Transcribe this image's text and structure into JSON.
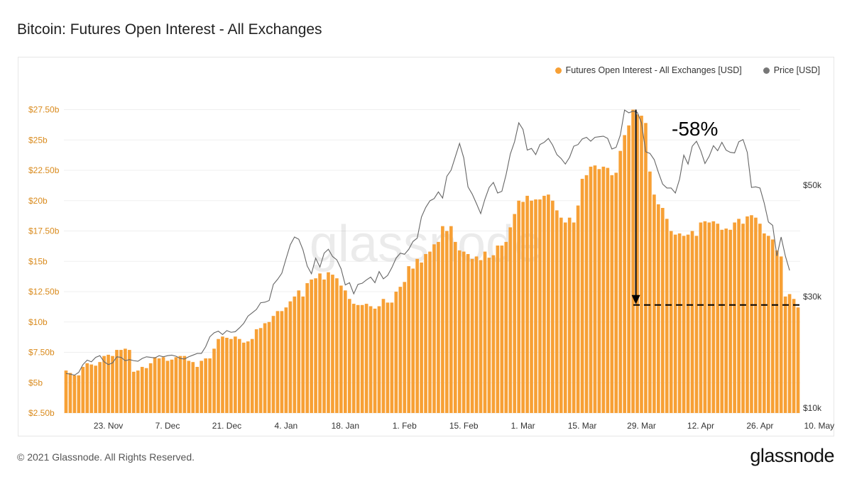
{
  "header": {
    "title": "Bitcoin: Futures Open Interest - All Exchanges"
  },
  "footer": {
    "copyright": "© 2021 Glassnode. All Rights Reserved.",
    "logo": "glassnode"
  },
  "watermark": "glassnode",
  "legend": [
    {
      "label": "Futures Open Interest - All Exchanges [USD]",
      "color": "#f7a035"
    },
    {
      "label": "Price [USD]",
      "color": "#777777"
    }
  ],
  "annotation": {
    "text": "-58%"
  },
  "chart_data": {
    "type": "bar",
    "title": "Bitcoin: Futures Open Interest - All Exchanges",
    "bar_color": "#f7a035",
    "line_color": "#666666",
    "grid": true,
    "legend_position": "top-right",
    "x_ticks": [
      "23. Nov",
      "7. Dec",
      "21. Dec",
      "4. Jan",
      "18. Jan",
      "1. Feb",
      "15. Feb",
      "1. Mar",
      "15. Mar",
      "29. Mar",
      "12. Apr",
      "26. Apr",
      "10. May"
    ],
    "y_left_ticks": [
      "$2.50b",
      "$5b",
      "$7.50b",
      "$10b",
      "$12.50b",
      "$15b",
      "$17.50b",
      "$20b",
      "$22.50b",
      "$25b",
      "$27.50b"
    ],
    "y_right_ticks": [
      "$10k",
      "$30k",
      "$50k"
    ],
    "ylim_left": [
      2.5,
      28.5
    ],
    "x_start": "2020-11-13",
    "series": [
      {
        "name": "Futures Open Interest - All Exchanges [USD]",
        "axis": "left",
        "unit": "billion USD",
        "values": [
          6.0,
          5.8,
          5.6,
          5.6,
          6.3,
          6.6,
          6.5,
          6.4,
          6.7,
          7.2,
          7.3,
          7.2,
          7.7,
          7.7,
          7.8,
          7.7,
          5.9,
          6.0,
          6.3,
          6.2,
          6.6,
          7.1,
          7.0,
          7.1,
          6.8,
          6.9,
          7.1,
          7.2,
          7.2,
          6.8,
          6.7,
          6.3,
          6.8,
          7.0,
          7.0,
          7.8,
          8.6,
          8.8,
          8.7,
          8.6,
          8.8,
          8.6,
          8.3,
          8.4,
          8.6,
          9.4,
          9.5,
          9.9,
          10.0,
          10.5,
          10.9,
          10.9,
          11.2,
          11.7,
          12.1,
          12.6,
          12.1,
          13.2,
          13.5,
          13.6,
          14.0,
          13.5,
          14.1,
          13.9,
          13.6,
          13.0,
          12.6,
          11.9,
          11.5,
          11.4,
          11.4,
          11.5,
          11.3,
          11.1,
          11.3,
          11.9,
          11.6,
          11.6,
          12.5,
          12.9,
          13.3,
          14.6,
          14.4,
          15.2,
          14.9,
          15.6,
          15.8,
          16.4,
          16.6,
          17.9,
          17.5,
          17.9,
          16.6,
          15.9,
          15.8,
          15.6,
          15.2,
          15.4,
          15.1,
          15.8,
          15.3,
          15.5,
          16.3,
          16.3,
          16.6,
          17.8,
          18.9,
          20.0,
          19.9,
          20.4,
          20.0,
          20.1,
          20.1,
          20.4,
          20.5,
          20.0,
          19.2,
          18.6,
          18.2,
          18.6,
          18.2,
          19.6,
          21.8,
          22.1,
          22.8,
          22.9,
          22.6,
          22.8,
          22.7,
          22.1,
          22.3,
          24.1,
          25.4,
          26.2,
          27.5,
          27.1,
          27.0,
          26.4,
          22.4,
          20.5,
          19.7,
          19.4,
          18.5,
          17.5,
          17.2,
          17.3,
          17.1,
          17.2,
          17.5,
          17.1,
          18.2,
          18.3,
          18.2,
          18.3,
          18.1,
          17.6,
          17.7,
          17.6,
          18.2,
          18.5,
          18.1,
          18.7,
          18.8,
          18.6,
          18.1,
          17.3,
          17.1,
          16.8,
          15.9,
          15.4,
          12.1,
          12.3,
          11.9,
          11.2
        ]
      },
      {
        "name": "Price [USD]",
        "axis": "right",
        "unit": "thousand USD",
        "values": [
          16.2,
          16.1,
          15.9,
          16.4,
          17.8,
          18.6,
          18.3,
          19.1,
          19.4,
          18.3,
          17.8,
          18.1,
          19.2,
          19.1,
          18.5,
          18.7,
          18.5,
          18.4,
          18.9,
          19.2,
          19.1,
          19.0,
          19.4,
          19.2,
          19.4,
          19.5,
          19.3,
          18.9,
          18.8,
          19.2,
          19.5,
          19.8,
          19.8,
          21.0,
          22.8,
          23.5,
          23.8,
          23.2,
          23.9,
          23.6,
          23.7,
          24.4,
          25.2,
          26.5,
          27.1,
          27.7,
          28.9,
          29.0,
          29.3,
          32.2,
          33.1,
          34.2,
          36.8,
          39.3,
          40.7,
          40.3,
          38.4,
          35.5,
          34.1,
          36.9,
          35.3,
          37.8,
          38.5,
          37.2,
          36.6,
          35.0,
          32.1,
          32.5,
          30.5,
          32.2,
          32.4,
          33.0,
          33.5,
          32.5,
          34.5,
          33.2,
          33.8,
          35.2,
          36.9,
          37.8,
          37.6,
          38.5,
          39.9,
          40.5,
          44.3,
          46.0,
          47.2,
          47.6,
          48.8,
          47.7,
          51.6,
          52.7,
          55.1,
          57.5,
          54.9,
          49.7,
          48.4,
          46.7,
          44.9,
          47.5,
          49.6,
          50.5,
          48.6,
          48.9,
          51.9,
          55.6,
          57.8,
          61.2,
          60.0,
          56.3,
          56.6,
          55.5,
          57.3,
          57.7,
          58.4,
          57.2,
          55.5,
          54.8,
          53.8,
          55.0,
          57.0,
          57.3,
          58.3,
          58.6,
          57.9,
          58.6,
          58.7,
          58.8,
          58.4,
          56.5,
          56.8,
          59.0,
          63.5,
          63.0,
          63.3,
          63.1,
          61.2,
          56.0,
          55.7,
          54.6,
          52.3,
          50.2,
          49.5,
          49.5,
          48.6,
          51.1,
          55.4,
          53.8,
          57.0,
          57.9,
          56.2,
          53.9,
          55.2,
          57.1,
          56.2,
          57.7,
          56.3,
          55.9,
          55.8,
          57.8,
          58.2,
          55.9,
          49.6,
          49.7,
          49.5,
          46.8,
          43.4,
          42.8,
          37.3,
          40.7,
          37.3,
          34.7
        ]
      }
    ],
    "reference_line": {
      "value": 11.4,
      "axis": "left",
      "style": "dashed"
    }
  }
}
